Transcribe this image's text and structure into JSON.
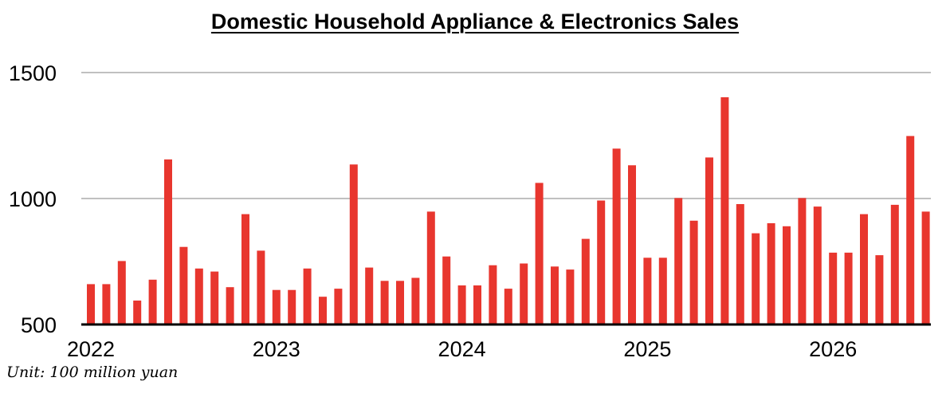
{
  "chart_data": {
    "type": "bar",
    "title": "Domestic Household Appliance & Electronics Sales",
    "xlabel": "",
    "ylabel": "",
    "ylim": [
      500,
      1500
    ],
    "yticks": [
      500,
      1000,
      1500
    ],
    "xtick_labels": [
      "2022",
      "2023",
      "2024",
      "2025",
      "2026"
    ],
    "grid": true,
    "bar_color": "#e8362e",
    "categories": [
      "2022-01",
      "2022-02",
      "2022-03",
      "2022-04",
      "2022-05",
      "2022-06",
      "2022-07",
      "2022-08",
      "2022-09",
      "2022-10",
      "2022-11",
      "2022-12",
      "2023-01",
      "2023-02",
      "2023-03",
      "2023-04",
      "2023-05",
      "2023-06",
      "2023-07",
      "2023-08",
      "2023-09",
      "2023-10",
      "2023-11",
      "2023-12",
      "2024-01",
      "2024-02",
      "2024-03",
      "2024-04",
      "2024-05",
      "2024-06",
      "2024-07",
      "2024-08",
      "2024-09",
      "2024-10",
      "2024-11",
      "2024-12",
      "2025-01",
      "2025-02",
      "2025-03",
      "2025-04",
      "2025-05",
      "2025-06",
      "2025-07",
      "2025-08",
      "2025-09",
      "2025-10",
      "2025-11",
      "2025-12",
      "2026-01",
      "2026-02",
      "2026-03",
      "2026-04",
      "2026-05",
      "2026-06",
      "2026-07"
    ],
    "values": [
      660,
      660,
      752,
      595,
      678,
      1155,
      808,
      722,
      710,
      648,
      938,
      793,
      637,
      637,
      722,
      610,
      642,
      1135,
      726,
      673,
      673,
      685,
      948,
      770,
      655,
      655,
      735,
      642,
      742,
      1062,
      730,
      718,
      840,
      992,
      1198,
      1132,
      765,
      765,
      1002,
      912,
      1163,
      1402,
      978,
      862,
      902,
      890,
      1002,
      968,
      785,
      785,
      938,
      775,
      975,
      1248,
      948
    ]
  },
  "footer": {
    "unit_note": "Unit: 100 million yuan"
  }
}
